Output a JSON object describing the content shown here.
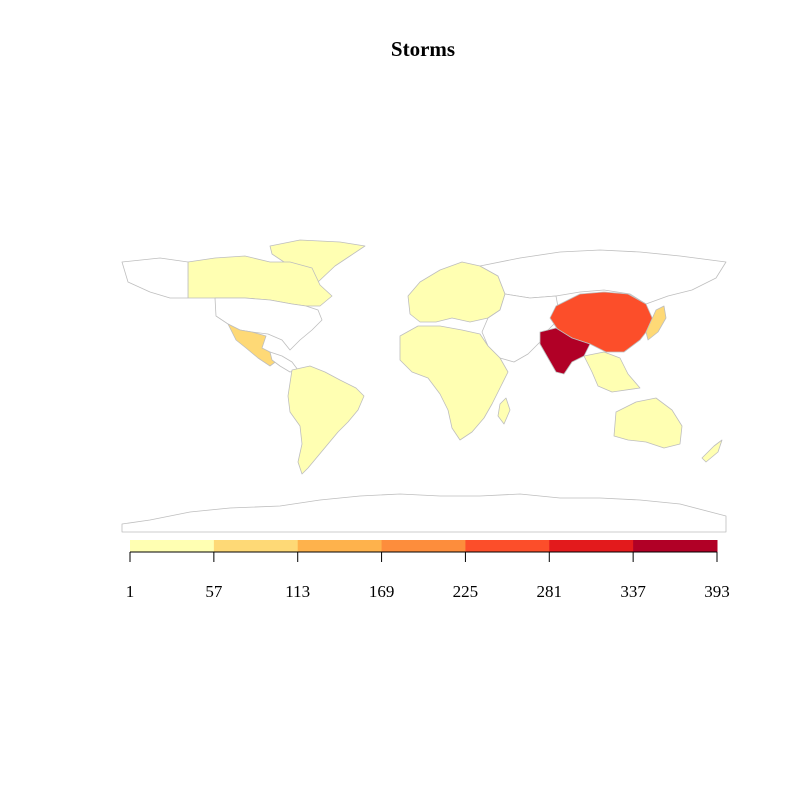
{
  "title": "Storms",
  "legend": {
    "breaks": [
      "1",
      "57",
      "113",
      "169",
      "225",
      "281",
      "337",
      "393"
    ],
    "colors": [
      "#FFFFB2",
      "#FED976",
      "#FEB24C",
      "#FD8D3C",
      "#FC4E2A",
      "#E31A1C",
      "#B10026"
    ]
  },
  "colors": {
    "no_data": "#ffffff",
    "border": "#bebebe"
  },
  "chart_data": {
    "type": "choropleth",
    "title": "Storms",
    "legend_position": "bottom",
    "value_range": [
      1,
      393
    ],
    "regions": [
      {
        "id": "india",
        "bin": 6
      },
      {
        "id": "china",
        "bin": 4
      },
      {
        "id": "mexico",
        "bin": 1
      },
      {
        "id": "japan",
        "bin": 1
      },
      {
        "id": "canada",
        "bin": 0
      },
      {
        "id": "greenland",
        "bin": 0
      },
      {
        "id": "usa",
        "bin": -1
      },
      {
        "id": "south-america",
        "bin": 0
      },
      {
        "id": "europe",
        "bin": 0
      },
      {
        "id": "africa",
        "bin": 0
      },
      {
        "id": "russia",
        "bin": -1
      },
      {
        "id": "australia",
        "bin": 0
      },
      {
        "id": "new-zealand",
        "bin": 0
      },
      {
        "id": "southeast-asia",
        "bin": 0
      },
      {
        "id": "antarctica",
        "bin": -1
      }
    ]
  }
}
